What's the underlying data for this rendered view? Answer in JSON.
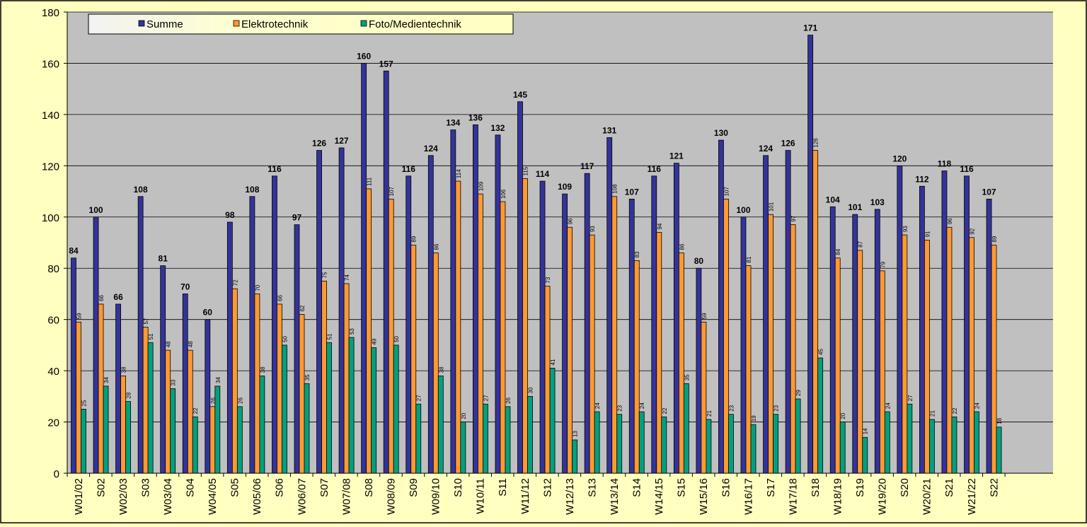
{
  "chart_data": {
    "type": "bar",
    "title": "",
    "xlabel": "",
    "ylabel": "",
    "ylim": [
      0,
      180
    ],
    "yticks": [
      0,
      20,
      40,
      60,
      80,
      100,
      120,
      140,
      160,
      180
    ],
    "grid": true,
    "legend_position": "top-left",
    "plot_background": "#c0c0c0",
    "page_background": "#ffffc0",
    "categories": [
      "W01/02",
      "S02",
      "W02/03",
      "S03",
      "W03/04",
      "S04",
      "W04/05",
      "S05",
      "W05/06",
      "S06",
      "W06/07",
      "S07",
      "W07/08",
      "S08",
      "W08/09",
      "S09",
      "W09/10",
      "S10",
      "W10/11",
      "S11",
      "W11/12",
      "S12",
      "W12/13",
      "S13",
      "W13/14",
      "S14",
      "W14/15",
      "S15",
      "W15/16",
      "S16",
      "W16/17",
      "S17",
      "W17/18",
      "S18",
      "W18/19",
      "S19",
      "W19/20",
      "S20",
      "W20/21",
      "S21",
      "W21/22",
      "S22"
    ],
    "series": [
      {
        "name": "Summe",
        "color": "#333399",
        "values": [
          84,
          100,
          66,
          108,
          81,
          70,
          60,
          98,
          108,
          116,
          97,
          126,
          127,
          160,
          157,
          116,
          124,
          134,
          136,
          132,
          145,
          114,
          109,
          117,
          131,
          107,
          116,
          121,
          80,
          130,
          100,
          124,
          126,
          171,
          104,
          101,
          103,
          120,
          112,
          118,
          116,
          107
        ]
      },
      {
        "name": "Elektrotechnik",
        "color": "#ff9933",
        "values": [
          59,
          66,
          38,
          57,
          48,
          48,
          26,
          72,
          70,
          66,
          62,
          75,
          74,
          111,
          107,
          89,
          86,
          114,
          109,
          106,
          115,
          73,
          96,
          93,
          108,
          83,
          94,
          86,
          59,
          107,
          81,
          101,
          97,
          126,
          84,
          87,
          79,
          93,
          91,
          96,
          92,
          89
        ]
      },
      {
        "name": "Foto/Medientechnik",
        "color": "#00a080",
        "values": [
          25,
          34,
          28,
          51,
          33,
          22,
          34,
          26,
          38,
          50,
          35,
          51,
          53,
          49,
          50,
          27,
          38,
          20,
          27,
          26,
          30,
          41,
          13,
          24,
          23,
          24,
          22,
          35,
          21,
          23,
          19,
          23,
          29,
          45,
          20,
          14,
          24,
          27,
          21,
          22,
          24,
          18
        ]
      }
    ]
  }
}
